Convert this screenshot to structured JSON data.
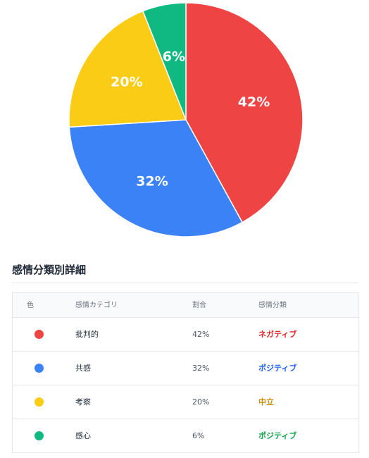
{
  "chart_data": {
    "type": "pie",
    "categories": [
      "批判的",
      "共感",
      "考察",
      "感心"
    ],
    "values": [
      42,
      32,
      20,
      6
    ],
    "labels": [
      "42%",
      "32%",
      "20%",
      "6%"
    ],
    "colors": [
      "#ef4444",
      "#3b82f6",
      "#facc15",
      "#10b981"
    ],
    "start_angle": "12 o'clock, clockwise"
  },
  "section": {
    "title": "感情分類別詳細"
  },
  "table": {
    "headers": [
      "色",
      "感情カテゴリ",
      "割合",
      "感情分類"
    ],
    "rows": [
      {
        "color": "#ef4444",
        "category": "批判的",
        "ratio": "42%",
        "class": "ネガティブ",
        "class_color": "#dc2626"
      },
      {
        "color": "#3b82f6",
        "category": "共感",
        "ratio": "32%",
        "class": "ポジティブ",
        "class_color": "#2563eb"
      },
      {
        "color": "#facc15",
        "category": "考察",
        "ratio": "20%",
        "class": "中立",
        "class_color": "#ca8a04"
      },
      {
        "color": "#10b981",
        "category": "感心",
        "ratio": "6%",
        "class": "ポジティブ",
        "class_color": "#16a34a"
      }
    ]
  }
}
